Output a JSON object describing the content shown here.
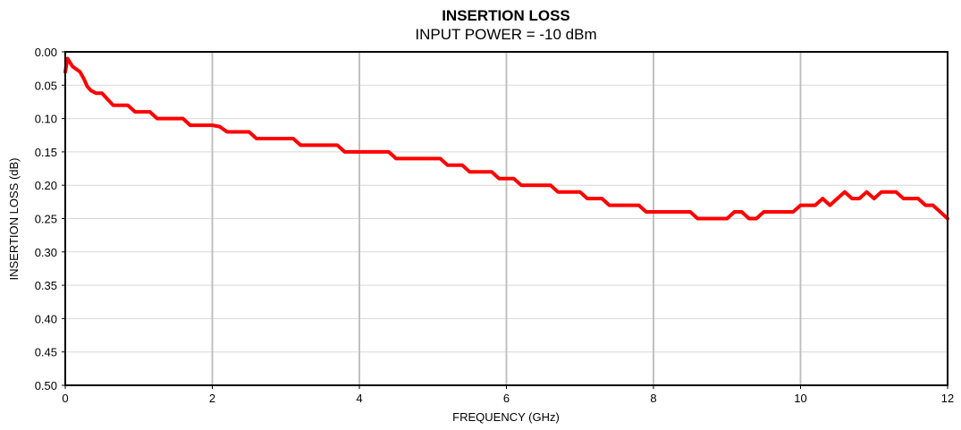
{
  "chart_data": {
    "type": "line",
    "title": "INSERTION LOSS",
    "subtitle": "INPUT POWER = -10 dBm",
    "xlabel": "FREQUENCY (GHz)",
    "ylabel": "INSERTION LOSS (dB)",
    "xlim": [
      0,
      12
    ],
    "ylim": [
      0.5,
      0.0
    ],
    "y_inverted": true,
    "x_ticks": [
      "0",
      "2",
      "4",
      "6",
      "8",
      "10",
      "12"
    ],
    "y_ticks": [
      "0.00",
      "0.05",
      "0.10",
      "0.15",
      "0.20",
      "0.25",
      "0.30",
      "0.35",
      "0.40",
      "0.45",
      "0.50"
    ],
    "grid": {
      "x": true,
      "y": true
    },
    "colors": {
      "line": "#ff0000",
      "vgrid": "#c0c0c0",
      "hgrid": "#d8d8d8",
      "frame": "#000000"
    },
    "series": [
      {
        "x": [
          0.0,
          0.03,
          0.06,
          0.1,
          0.2,
          0.25,
          0.3,
          0.35,
          0.42,
          0.5,
          0.55,
          0.65,
          0.75,
          0.85,
          0.95,
          1.0,
          1.05,
          1.15,
          1.25,
          1.35,
          1.45,
          1.6,
          1.7,
          1.8,
          1.9,
          2.0,
          2.1,
          2.2,
          2.4,
          2.5,
          2.6,
          2.8,
          3.0,
          3.1,
          3.2,
          3.4,
          3.6,
          3.7,
          3.8,
          4.0,
          4.2,
          4.4,
          4.5,
          4.6,
          4.8,
          5.0,
          5.1,
          5.2,
          5.3,
          5.4,
          5.5,
          5.6,
          5.7,
          5.8,
          5.9,
          6.0,
          6.1,
          6.2,
          6.3,
          6.4,
          6.6,
          6.7,
          6.8,
          6.9,
          7.0,
          7.1,
          7.2,
          7.3,
          7.4,
          7.6,
          7.7,
          7.8,
          7.9,
          8.0,
          8.2,
          8.4,
          8.5,
          8.6,
          8.7,
          8.8,
          8.9,
          9.0,
          9.05,
          9.1,
          9.2,
          9.3,
          9.4,
          9.5,
          9.6,
          9.8,
          9.9,
          10.0,
          10.1,
          10.2,
          10.3,
          10.4,
          10.5,
          10.6,
          10.7,
          10.8,
          10.9,
          11.0,
          11.1,
          11.2,
          11.3,
          11.4,
          11.5,
          11.6,
          11.7,
          11.8,
          11.9,
          12.0
        ],
        "y": [
          0.03,
          0.01,
          0.015,
          0.022,
          0.03,
          0.04,
          0.052,
          0.058,
          0.062,
          0.062,
          0.068,
          0.08,
          0.08,
          0.08,
          0.09,
          0.09,
          0.09,
          0.09,
          0.1,
          0.1,
          0.1,
          0.1,
          0.11,
          0.11,
          0.11,
          0.11,
          0.112,
          0.12,
          0.12,
          0.12,
          0.13,
          0.13,
          0.13,
          0.13,
          0.14,
          0.14,
          0.14,
          0.14,
          0.15,
          0.15,
          0.15,
          0.15,
          0.16,
          0.16,
          0.16,
          0.16,
          0.16,
          0.17,
          0.17,
          0.17,
          0.18,
          0.18,
          0.18,
          0.18,
          0.19,
          0.19,
          0.19,
          0.2,
          0.2,
          0.2,
          0.2,
          0.21,
          0.21,
          0.21,
          0.21,
          0.22,
          0.22,
          0.22,
          0.23,
          0.23,
          0.23,
          0.23,
          0.24,
          0.24,
          0.24,
          0.24,
          0.24,
          0.25,
          0.25,
          0.25,
          0.25,
          0.25,
          0.245,
          0.24,
          0.24,
          0.25,
          0.25,
          0.24,
          0.24,
          0.24,
          0.24,
          0.23,
          0.23,
          0.23,
          0.22,
          0.23,
          0.22,
          0.21,
          0.22,
          0.22,
          0.21,
          0.22,
          0.21,
          0.21,
          0.21,
          0.22,
          0.22,
          0.22,
          0.23,
          0.23,
          0.24,
          0.25
        ]
      }
    ]
  }
}
